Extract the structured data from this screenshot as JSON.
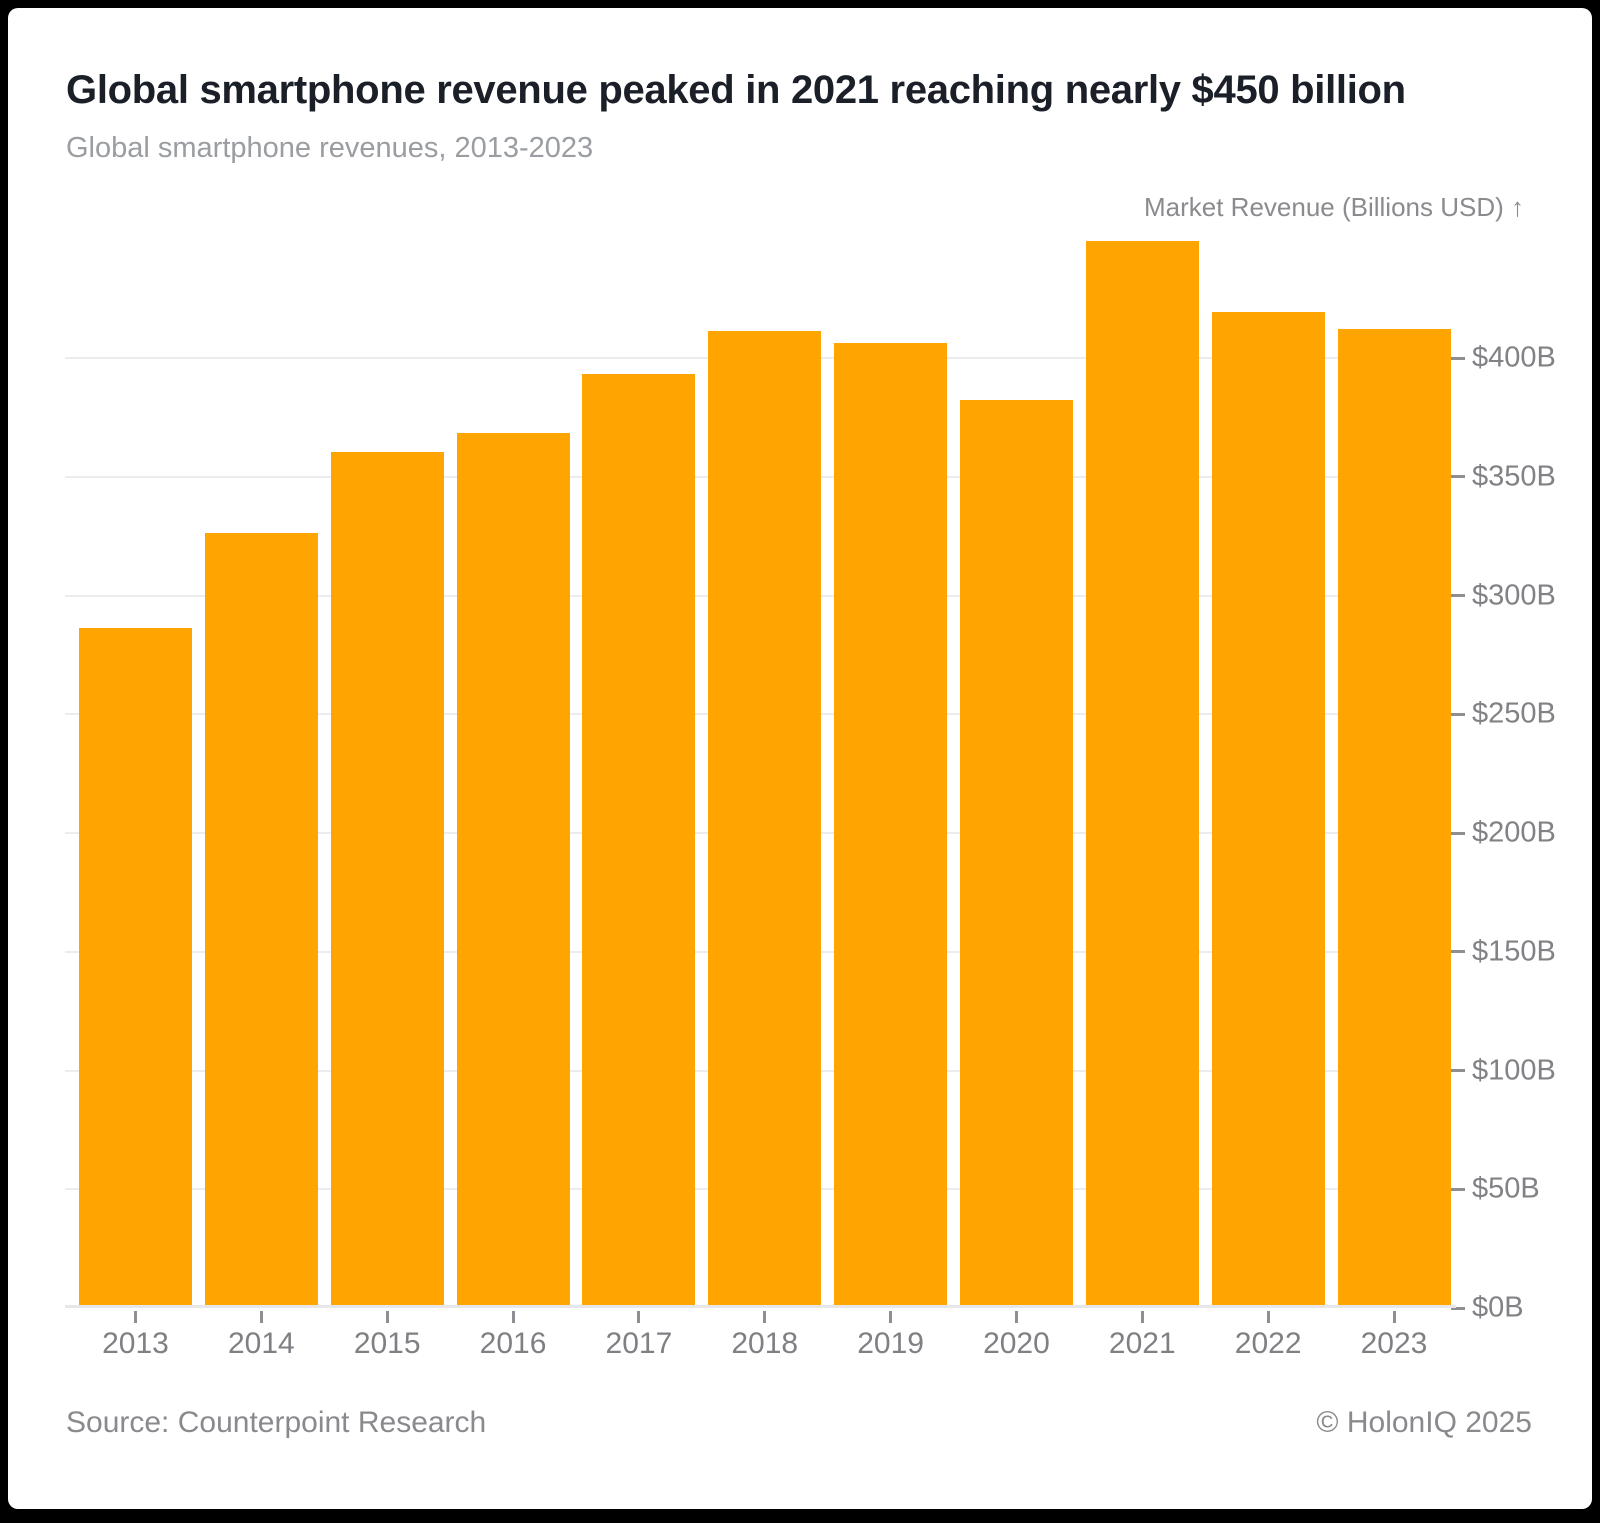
{
  "header": {
    "title": "Global smartphone revenue peaked in 2021 reaching nearly $450 billion",
    "subtitle": "Global smartphone revenues, 2013-2023"
  },
  "footer": {
    "source": "Source: Counterpoint Research",
    "copyright": "© HolonIQ 2025"
  },
  "chart_data": {
    "type": "bar",
    "title": "Global smartphone revenue peaked in 2021 reaching nearly $450 billion",
    "subtitle": "Global smartphone revenues, 2013-2023",
    "categories": [
      "2013",
      "2014",
      "2015",
      "2016",
      "2017",
      "2018",
      "2019",
      "2020",
      "2021",
      "2022",
      "2023"
    ],
    "values": [
      285,
      325,
      359,
      367,
      392,
      410,
      405,
      381,
      448,
      418,
      411
    ],
    "xlabel": "",
    "ylabel": "Market Revenue (Billions USD) ↑",
    "ylim": [
      0,
      450
    ],
    "y_ticks": [
      {
        "value": 0,
        "label": "$0B"
      },
      {
        "value": 50,
        "label": "$50B"
      },
      {
        "value": 100,
        "label": "$100B"
      },
      {
        "value": 150,
        "label": "$150B"
      },
      {
        "value": 200,
        "label": "$200B"
      },
      {
        "value": 250,
        "label": "$250B"
      },
      {
        "value": 300,
        "label": "$300B"
      },
      {
        "value": 350,
        "label": "$350B"
      },
      {
        "value": 400,
        "label": "$400B"
      }
    ],
    "grid": true,
    "legend_position": "none",
    "bar_color": "#FFA502"
  },
  "colors": {
    "bar": "#FFA502",
    "title_text": "#1B1F28",
    "subtitle_text": "#9A9DA1",
    "axis_text": "#7E8084",
    "gridline": "#ECECEE",
    "card_background": "#FFFFFF",
    "frame_background": "#000000"
  }
}
